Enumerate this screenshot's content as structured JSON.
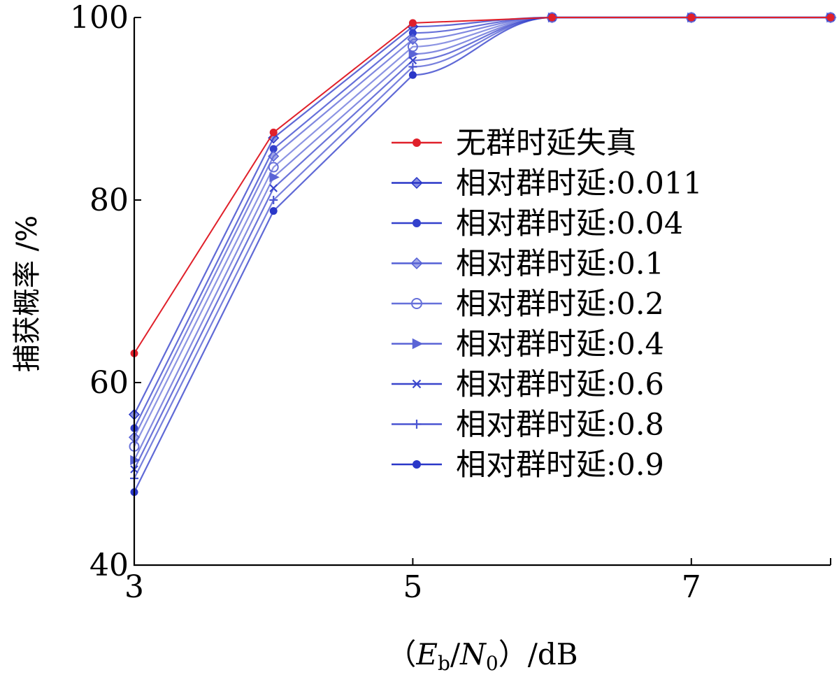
{
  "chart_data": {
    "type": "line",
    "xlabel": "（Eb/N0）/dB",
    "xlabel_parts": {
      "open": "（",
      "e": "E",
      "e_sub": "b",
      "slash": "/",
      "n": "N",
      "n_sub": "0",
      "close": "）",
      "unit": "/dB"
    },
    "ylabel": "捕获概率 /%",
    "xlim": [
      3,
      8
    ],
    "ylim": [
      40,
      100
    ],
    "xticks": [
      3,
      5,
      7
    ],
    "yticks": [
      40,
      60,
      80,
      100
    ],
    "grid": false,
    "legend_position": "right",
    "x": [
      3,
      4,
      5,
      6,
      7,
      8
    ],
    "series": [
      {
        "name": "无群时延失真",
        "color": "#e0202a",
        "marker": "dot",
        "values": [
          63.2,
          87.4,
          99.4,
          100,
          100,
          100
        ]
      },
      {
        "name": "相对群时延:0.011",
        "color": "#2a37c8",
        "marker": "diamond",
        "values": [
          56.5,
          86.8,
          99.0,
          100,
          100,
          100
        ]
      },
      {
        "name": "相对群时延:0.04",
        "color": "#3340cc",
        "marker": "dot",
        "values": [
          55.0,
          85.6,
          98.3,
          100,
          100,
          100
        ]
      },
      {
        "name": "相对群时延:0.1",
        "color": "#5560d6",
        "marker": "diamond",
        "values": [
          54.0,
          84.8,
          97.6,
          100,
          100,
          100
        ]
      },
      {
        "name": "相对群时延:0.2",
        "color": "#6670da",
        "marker": "circle",
        "values": [
          53.0,
          83.6,
          96.8,
          100,
          100,
          100
        ]
      },
      {
        "name": "相对群时延:0.4",
        "color": "#5a64d6",
        "marker": "triangle",
        "values": [
          51.5,
          82.5,
          96.0,
          100,
          100,
          100
        ]
      },
      {
        "name": "相对群时延:0.6",
        "color": "#3a46cc",
        "marker": "x",
        "values": [
          50.5,
          81.3,
          95.3,
          100,
          100,
          100
        ]
      },
      {
        "name": "相对群时延:0.8",
        "color": "#4a55d2",
        "marker": "plus",
        "values": [
          49.5,
          80.0,
          94.6,
          100,
          100,
          100
        ]
      },
      {
        "name": "相对群时延:0.9",
        "color": "#2a37c8",
        "marker": "dot",
        "values": [
          48.0,
          78.8,
          93.7,
          100,
          100,
          100
        ]
      }
    ]
  }
}
